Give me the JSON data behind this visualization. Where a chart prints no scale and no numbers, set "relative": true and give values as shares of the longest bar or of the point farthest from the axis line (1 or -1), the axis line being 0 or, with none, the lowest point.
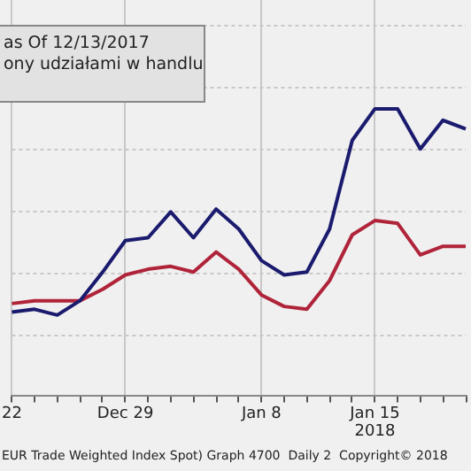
{
  "chart_data": {
    "type": "line",
    "relative": true,
    "grid": true,
    "marker": "none",
    "line_style": "solid",
    "categories": [
      "22",
      null,
      null,
      null,
      null,
      "Dec 29",
      null,
      null,
      null,
      null,
      null,
      "Jan 8",
      null,
      null,
      null,
      null,
      "Jan 15",
      null,
      null,
      null,
      null
    ],
    "series": [
      {
        "color": "#1a1a6e",
        "values": [
          0.29,
          0.3,
          0.28,
          0.33,
          0.43,
          0.54,
          0.55,
          0.64,
          0.55,
          0.65,
          0.58,
          0.47,
          0.42,
          0.43,
          0.58,
          0.89,
          1,
          1,
          0.86,
          0.96,
          0.93
        ]
      },
      {
        "color": "#b0243a",
        "values": [
          0.32,
          0.33,
          0.33,
          0.33,
          0.37,
          0.42,
          0.44,
          0.45,
          0.43,
          0.5,
          0.44,
          0.35,
          0.31,
          0.3,
          0.4,
          0.56,
          0.61,
          0.6,
          0.49,
          0.52,
          0.52
        ]
      }
    ],
    "annotations": [
      "as Of 12/13/2017",
      "ony udziałami w handlu",
      "2018",
      "EUR Trade Weighted Index Spot) Graph 4700  Daily 2  Copyright© 2018"
    ]
  }
}
